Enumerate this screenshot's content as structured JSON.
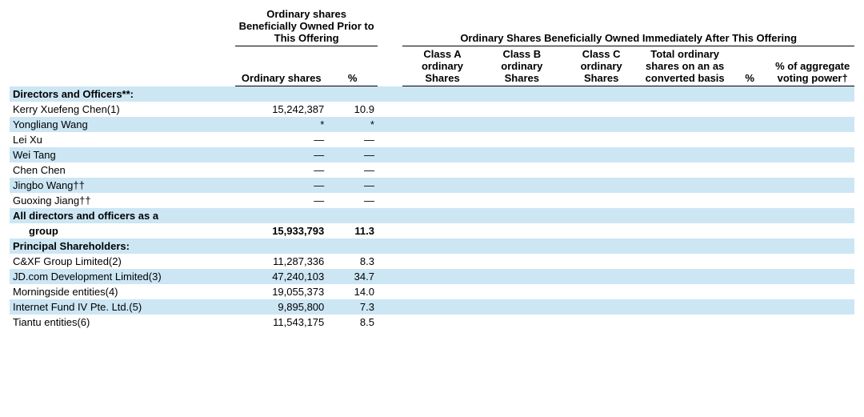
{
  "headers": {
    "group_prior": "Ordinary shares Beneficially Owned Prior to This Offering",
    "group_after": "Ordinary Shares Beneficially Owned Immediately After This Offering",
    "ordinary_shares": "Ordinary shares",
    "pct": "%",
    "class_a": "Class A ordinary Shares",
    "class_b": "Class B ordinary Shares",
    "class_c": "Class C ordinary Shares",
    "total_conv": "Total ordinary shares on an as converted basis",
    "pct2": "%",
    "agg_voting": "% of aggregate voting power†"
  },
  "sections": {
    "directors_heading": "Directors and Officers**:",
    "all_directors_label": "All directors and officers as a",
    "all_directors_label2": "group",
    "principal_heading": "Principal Shareholders:"
  },
  "rows": {
    "r0": {
      "name": "Kerry Xuefeng Chen(1)",
      "shares": "15,242,387",
      "pct": "10.9"
    },
    "r1": {
      "name": "Yongliang Wang",
      "shares": "*",
      "pct": "*"
    },
    "r2": {
      "name": "Lei Xu",
      "shares": "—",
      "pct": "—"
    },
    "r3": {
      "name": "Wei Tang",
      "shares": "—",
      "pct": "—"
    },
    "r4": {
      "name": "Chen Chen",
      "shares": "—",
      "pct": "—"
    },
    "r5": {
      "name": "Jingbo Wang††",
      "shares": "—",
      "pct": "—"
    },
    "r6": {
      "name": "Guoxing Jiang††",
      "shares": "—",
      "pct": "—"
    }
  },
  "all_directors": {
    "shares": "15,933,793",
    "pct": "11.3"
  },
  "principal": {
    "p0": {
      "name": "C&XF Group Limited(2)",
      "shares": "11,287,336",
      "pct": "8.3"
    },
    "p1": {
      "name": "JD.com Development Limited(3)",
      "shares": "47,240,103",
      "pct": "34.7"
    },
    "p2": {
      "name": "Morningside entities(4)",
      "shares": "19,055,373",
      "pct": "14.0"
    },
    "p3": {
      "name": "Internet Fund IV Pte. Ltd.(5)",
      "shares": "9,895,800",
      "pct": "7.3"
    },
    "p4": {
      "name": "Tiantu entities(6)",
      "shares": "11,543,175",
      "pct": "8.5"
    }
  },
  "colors": {
    "stripe": "#cce6f4",
    "text": "#000000",
    "bg": "#ffffff",
    "border": "#000000"
  }
}
